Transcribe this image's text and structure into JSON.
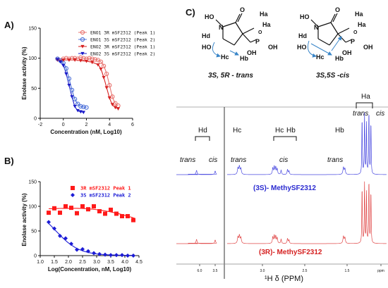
{
  "panel_labels": {
    "a": "A)",
    "b": "B)",
    "c": "C)"
  },
  "chart_data": [
    {
      "id": "A",
      "type": "scatter",
      "xlabel": "Concentration (nM, Log10)",
      "ylabel": "Enolase activity (%)",
      "xlim": [
        -2,
        6
      ],
      "ylim": [
        0,
        150
      ],
      "xticks": [
        -2,
        0,
        2,
        4,
        6
      ],
      "yticks": [
        0,
        50,
        100,
        150
      ],
      "legend_position": "top-right",
      "series": [
        {
          "name": "ENO1 3R mSF2312 (Peak 1)",
          "color": "#e8736f",
          "marker": "circle-open",
          "x": [
            -0.5,
            0,
            0.25,
            0.5,
            0.75,
            1,
            1.25,
            1.5,
            1.75,
            2,
            2.25,
            2.5,
            2.75,
            3,
            3.25,
            3.5,
            3.75,
            4,
            4.25,
            4.5,
            4.75
          ],
          "y": [
            99,
            99,
            100,
            99,
            100,
            100,
            99,
            101,
            100,
            99,
            100,
            99,
            98,
            97,
            94,
            87,
            74,
            55,
            36,
            25,
            21
          ]
        },
        {
          "name": "ENO1 3S mSF2312 (Peak 2)",
          "color": "#4b6fd8",
          "marker": "circle-open",
          "x": [
            -0.5,
            -0.25,
            0,
            0.25,
            0.5,
            0.75,
            1,
            1.25,
            1.5,
            1.75,
            2
          ],
          "y": [
            99,
            96,
            92,
            83,
            66,
            47,
            32,
            24,
            20,
            19,
            18
          ]
        },
        {
          "name": "ENO2 3R mSF2312 (Peak 1)",
          "color": "#d62020",
          "marker": "triangle-down",
          "x": [
            -0.5,
            0,
            0.5,
            1,
            1.5,
            2,
            2.5,
            3,
            3.25,
            3.5,
            3.75,
            4,
            4.25,
            4.5,
            4.75
          ],
          "y": [
            97,
            97,
            97,
            97,
            96,
            95,
            93,
            89,
            82,
            68,
            51,
            34,
            23,
            18,
            16
          ]
        },
        {
          "name": "ENO2 3S mSF2312 (Peak 2)",
          "color": "#1818c8",
          "marker": "triangle-down",
          "x": [
            -0.5,
            -0.25,
            0,
            0.25,
            0.5,
            0.75,
            1,
            1.25,
            1.5,
            1.75
          ],
          "y": [
            98,
            94,
            88,
            74,
            55,
            36,
            20,
            13,
            11,
            10
          ]
        }
      ]
    },
    {
      "id": "B",
      "type": "scatter",
      "xlabel": "Log(Concentration, nM, Log10)",
      "ylabel": "Enolase activity (%)",
      "xlim": [
        1.0,
        4.5
      ],
      "ylim": [
        0,
        150
      ],
      "xticks": [
        1.0,
        1.5,
        2.0,
        2.5,
        3.0,
        3.5,
        4.0,
        4.5
      ],
      "yticks": [
        0,
        50,
        100,
        150
      ],
      "legend_position": "top-right",
      "series": [
        {
          "name": "3R mSF2312 Peak 1",
          "color": "#ff1a1a",
          "marker": "square",
          "x": [
            1.3,
            1.5,
            1.7,
            1.9,
            2.1,
            2.3,
            2.5,
            2.7,
            2.9,
            3.1,
            3.3,
            3.5,
            3.7,
            3.9,
            4.1,
            4.3
          ],
          "y": [
            87,
            96,
            87,
            100,
            97,
            86,
            100,
            94,
            100,
            90,
            85,
            93,
            85,
            80,
            80,
            72
          ]
        },
        {
          "name": "3S mSF2312 Peak 2",
          "color": "#1c1cd6",
          "marker": "diamond",
          "x": [
            1.3,
            1.5,
            1.7,
            1.9,
            2.1,
            2.3,
            2.5,
            2.7,
            2.9,
            3.1,
            3.3,
            3.5,
            3.7,
            3.9,
            4.1,
            4.3
          ],
          "y": [
            68,
            55,
            40,
            35,
            24,
            12,
            13,
            9,
            5,
            3,
            2,
            1,
            1,
            1,
            0,
            0
          ]
        }
      ]
    },
    {
      "id": "C-nmr",
      "type": "line",
      "xlabel": "¹H δ (PPM)",
      "spectra": [
        {
          "name": "(3S)- MethySF2312",
          "color": "#4a4ae0"
        },
        {
          "name": "(3R)- MethySF2312",
          "color": "#e04848"
        }
      ],
      "region_labels": [
        "trans",
        "cis",
        "trans",
        "cis",
        "trans",
        "trans",
        "cis"
      ],
      "proton_labels": [
        "Hd",
        "Hc",
        "Hc",
        "Hb",
        "Hb",
        "Ha"
      ],
      "peak_positions": [
        5.65,
        5.05,
        3.95,
        3.83,
        3.65,
        3.22,
        1.45,
        1.4,
        1.36,
        1.31,
        1.27
      ]
    }
  ],
  "structures": [
    {
      "caption": "3S, 5R - trans",
      "atoms": [
        "O",
        "N",
        "HO",
        "P",
        "OH",
        "OH",
        "O",
        "HO",
        "Hd",
        "Hc",
        "Hb",
        "Ha",
        "Ha"
      ]
    },
    {
      "caption": "3S,5S -cis",
      "atoms": [
        "O",
        "N",
        "HO",
        "P",
        "OH",
        "OH",
        "O",
        "HO",
        "Hd",
        "Hc",
        "Hb",
        "Ha",
        "Ha"
      ]
    }
  ],
  "nmr_text": {
    "hd": "Hd",
    "hc1": "Hc",
    "hc2": "Hc",
    "hb1": "Hb",
    "hb2": "Hb",
    "ha": "Ha",
    "trans1": "trans",
    "cis1": "cis",
    "trans2": "trans",
    "cis2": "cis",
    "trans3": "trans",
    "trans4": "trans",
    "cis3": "cis",
    "spec_3s": "(3S)- MethySF2312",
    "spec_3r": "(3R)- MethySF2312",
    "xaxis": "¹H δ (PPM)",
    "ticks": [
      "6.0",
      "3.5",
      "3.0",
      "2.5",
      "1.5",
      "ppm"
    ]
  }
}
